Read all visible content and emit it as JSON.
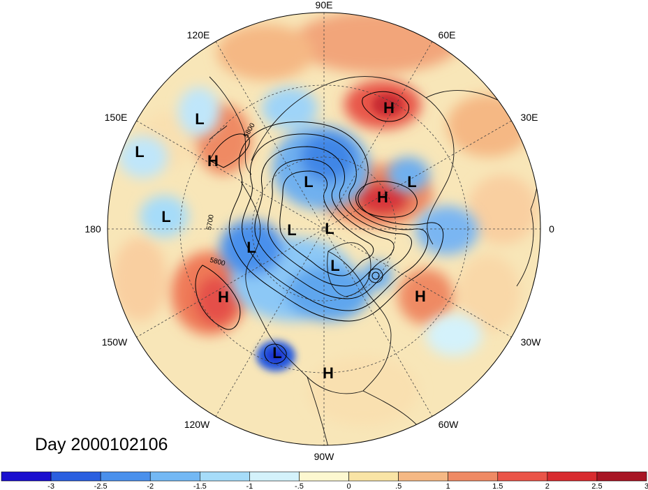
{
  "title": "Day 2000102106",
  "colors": {
    "ocean_bg": "#f8e6b8",
    "land_bg": "#f3dca7",
    "coast": "#111111",
    "contour": "#000000"
  },
  "longitude_labels": [
    {
      "id": "lon-90e",
      "text": "90E"
    },
    {
      "id": "lon-120e",
      "text": "120E"
    },
    {
      "id": "lon-60e",
      "text": "60E"
    },
    {
      "id": "lon-150e",
      "text": "150E"
    },
    {
      "id": "lon-30e",
      "text": "30E"
    },
    {
      "id": "lon-180",
      "text": "180"
    },
    {
      "id": "lon-0",
      "text": "0"
    },
    {
      "id": "lon-150w",
      "text": "150W"
    },
    {
      "id": "lon-30w",
      "text": "30W"
    },
    {
      "id": "lon-120w",
      "text": "120W"
    },
    {
      "id": "lon-60w",
      "text": "60W"
    },
    {
      "id": "lon-90w",
      "text": "90W"
    }
  ],
  "pressure_centers": [
    {
      "type": "H",
      "region": "siberia"
    },
    {
      "type": "L",
      "region": "east-asia"
    },
    {
      "type": "H",
      "region": "kamchatka"
    },
    {
      "type": "L",
      "region": "west-pacific"
    },
    {
      "type": "L",
      "region": "central-pacific"
    },
    {
      "type": "L",
      "region": "arctic-siberia"
    },
    {
      "type": "L",
      "region": "scandinavia"
    },
    {
      "type": "H",
      "region": "eastern-europe"
    },
    {
      "type": "L",
      "region": "arctic-east"
    },
    {
      "type": "L",
      "region": "arctic-center"
    },
    {
      "type": "L",
      "region": "alaska"
    },
    {
      "type": "L",
      "region": "canada-arctic"
    },
    {
      "type": "H",
      "region": "northeast-pacific"
    },
    {
      "type": "H",
      "region": "north-atlantic"
    },
    {
      "type": "L",
      "region": "baja-california"
    },
    {
      "type": "H",
      "region": "gulf-of-mexico"
    }
  ],
  "contour_labels": [
    "5800",
    "5700",
    "5800"
  ],
  "colorbar": {
    "colors": [
      "#1a0fcf",
      "#2a5fe0",
      "#4a90ec",
      "#73b8f4",
      "#a6dcf9",
      "#d4f2fb",
      "#fdf8d0",
      "#f9e4a5",
      "#f5b884",
      "#ef8a64",
      "#ea5448",
      "#d82b2f",
      "#a81524"
    ],
    "ticks": [
      "-3",
      "-2.5",
      "-2",
      "-1.5",
      "-1",
      "-.5",
      "0",
      ".5",
      "1",
      "1.5",
      "2",
      "2.5",
      "3"
    ]
  }
}
